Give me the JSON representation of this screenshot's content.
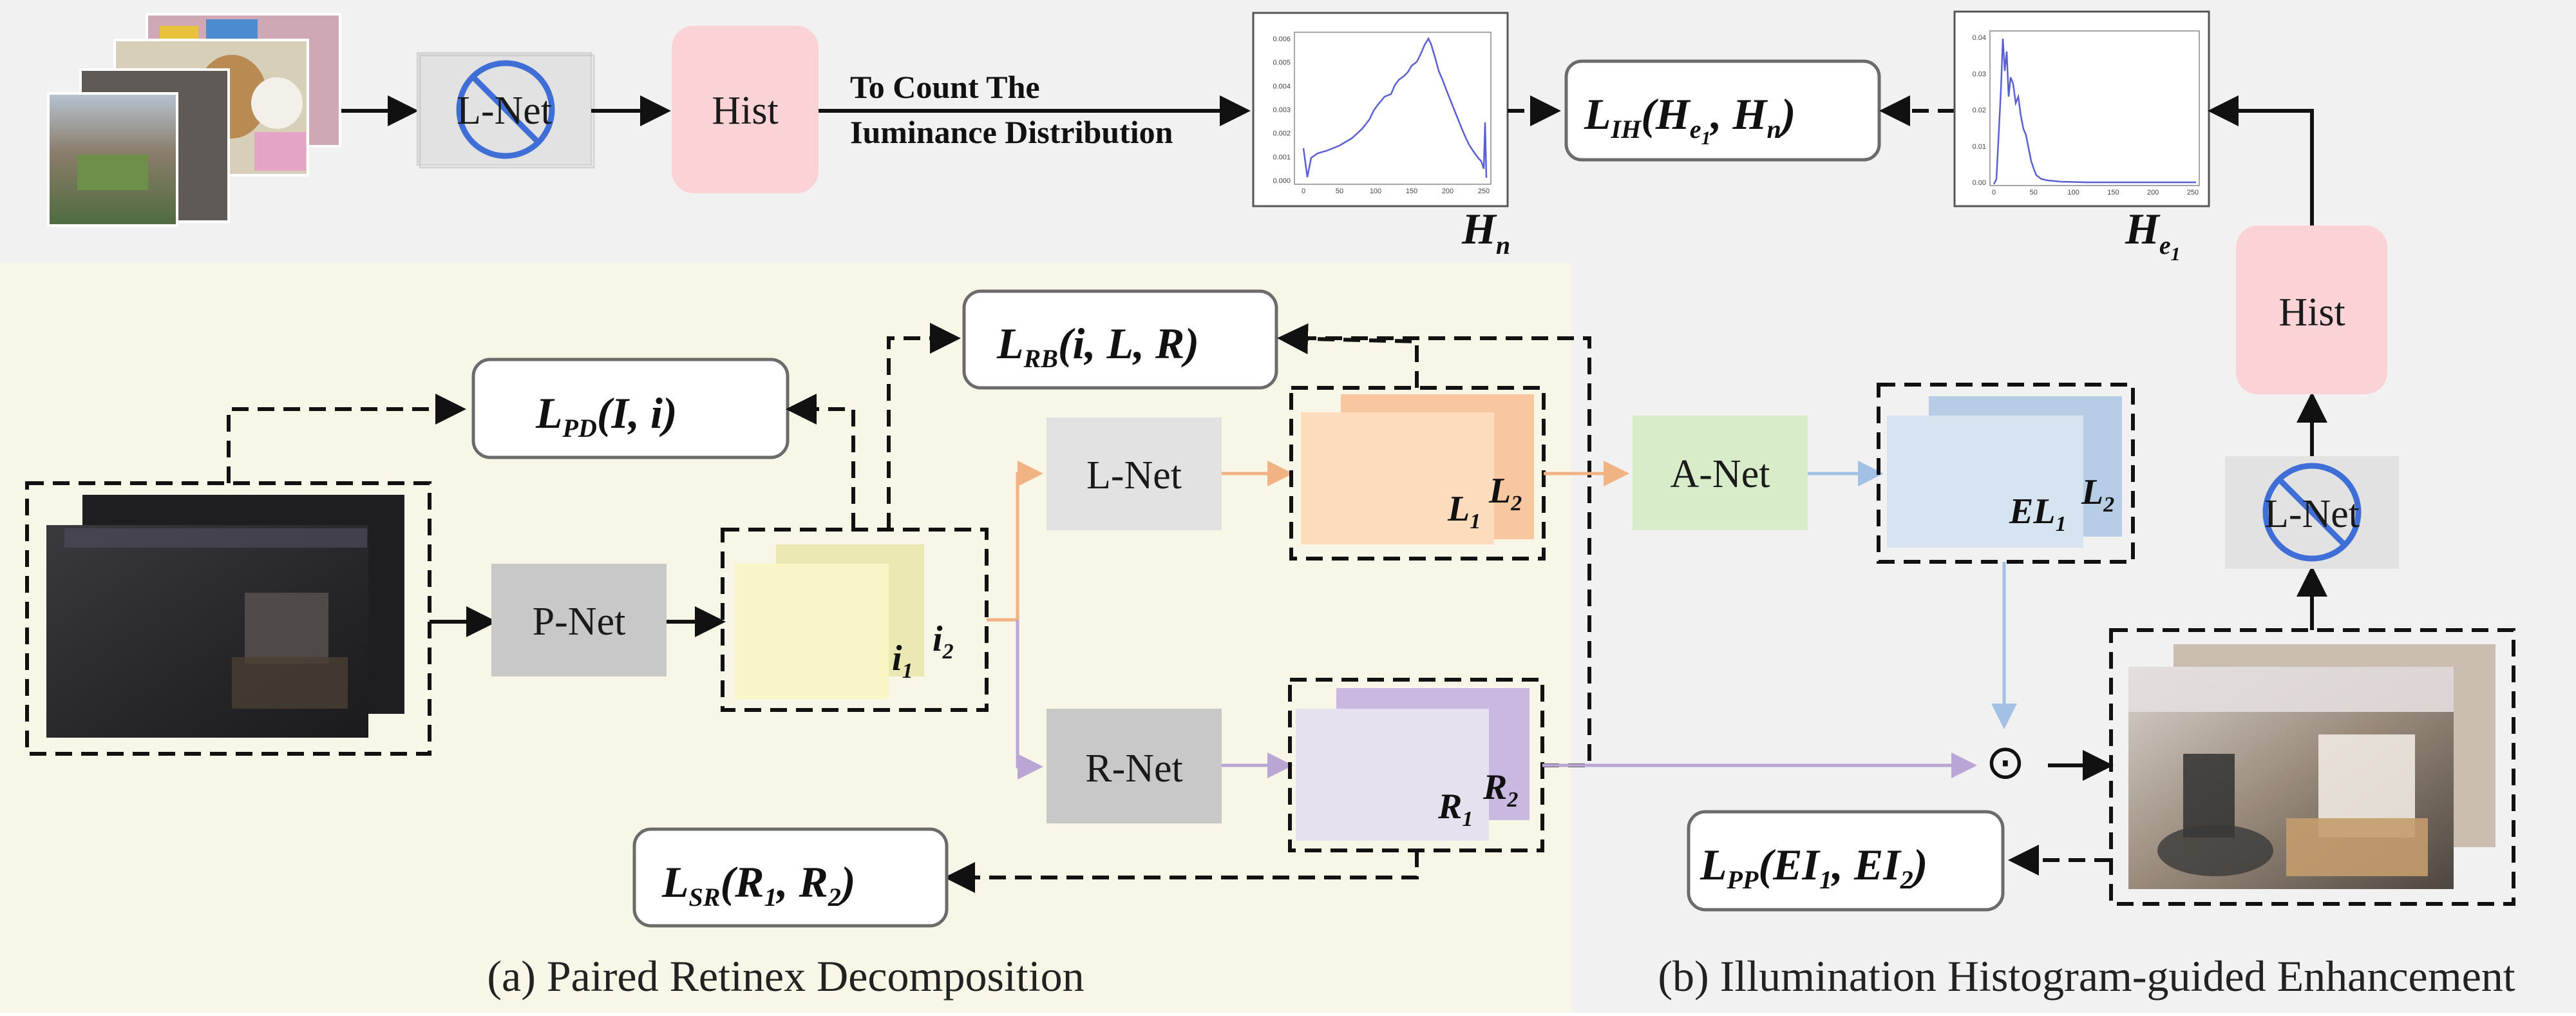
{
  "top": {
    "lnet_label": "L-Net",
    "hist_label": "Hist",
    "note_line1": "To Count The",
    "note_line2": "Iuminance Distribution",
    "hn_label": "H",
    "hn_sub": "n",
    "he1_label": "H",
    "he1_sub": "e",
    "he1_subsub": "1",
    "loss_ih": "L",
    "loss_ih_sub": "IH",
    "loss_ih_args": "(H",
    "loss_ih_args_sub": "e",
    "loss_ih_args_subsub": "1",
    "loss_ih_args_tail": ", H",
    "loss_ih_args_tail_sub": "n",
    "loss_ih_close": ")"
  },
  "plot_hn": {
    "yticks": [
      "0.006",
      "0.005",
      "0.004",
      "0.003",
      "0.002",
      "0.001",
      "0.000"
    ],
    "xticks": [
      "0",
      "50",
      "100",
      "150",
      "200",
      "250"
    ]
  },
  "plot_he": {
    "yticks": [
      "0.04",
      "0.03",
      "0.02",
      "0.01",
      "0.00"
    ],
    "xticks": [
      "0",
      "50",
      "100",
      "150",
      "200",
      "250"
    ]
  },
  "left": {
    "pnet_label": "P-Net",
    "lnet_label": "L-Net",
    "rnet_label": "R-Net",
    "i1": "i",
    "i1_sub": "1",
    "i2": "i",
    "i2_sub": "2",
    "L1": "L",
    "L1_sub": "1",
    "L2": "L",
    "L2_sub": "2",
    "R1": "R",
    "R1_sub": "1",
    "R2": "R",
    "R2_sub": "2",
    "loss_pd": "L",
    "loss_pd_sub": "PD",
    "loss_pd_args": "(I, i)",
    "loss_rb": "L",
    "loss_rb_sub": "RB",
    "loss_rb_args": "(i, L, R)",
    "loss_sr": "L",
    "loss_sr_sub": "SR",
    "loss_sr_args": "(R",
    "loss_sr_a1": "1",
    "loss_sr_mid": ", R",
    "loss_sr_a2": "2",
    "loss_sr_close": ")",
    "caption": "(a) Paired Retinex Decomposition"
  },
  "right": {
    "anet_label": "A-Net",
    "lnet_label": "L-Net",
    "hist_label": "Hist",
    "EL1": "EL",
    "EL1_sub": "1",
    "L2": "L",
    "L2_sub": "2",
    "odot": "⊙",
    "loss_pp": "L",
    "loss_pp_sub": "PP",
    "loss_pp_args": "(EI",
    "loss_pp_a1": "1",
    "loss_pp_mid": ", EI",
    "loss_pp_a2": "2",
    "loss_pp_close": ")",
    "caption": "(b) Illumination Histogram-guided Enhancement"
  },
  "colors": {
    "panel_left": "#f8f6e6",
    "panel_top": "#f1f1f1",
    "hist_box": "#fbd3d6",
    "lnet_box": "#e2e2e2",
    "pnet_box": "#c8c8c8",
    "anet_box": "#d8ecc9",
    "yellow_map": "#f8f5c6",
    "orange_map": "#fcdcbd",
    "purple_map": "#e7e0ef",
    "blue_map": "#d6e4f2",
    "orange_arrow": "#f2b384",
    "purple_arrow": "#b9a6d4",
    "blue_arrow": "#a3c1e4",
    "prohibit_blue": "#3f6fd6"
  }
}
